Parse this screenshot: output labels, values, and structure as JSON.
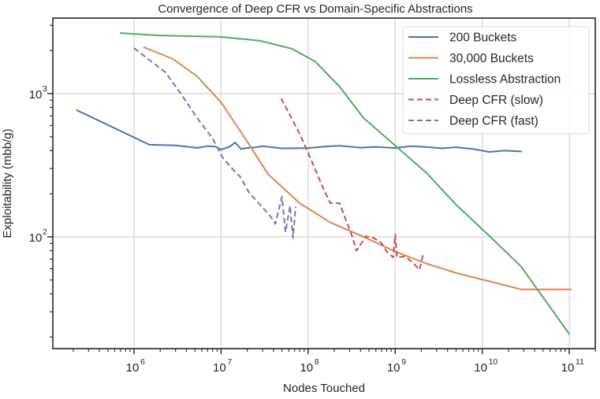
{
  "chart_data": {
    "type": "line",
    "title": "Convergence of Deep CFR vs Domain-Specific Abstractions",
    "xlabel": "Nodes Touched",
    "ylabel": "Exploitability (mbb/g)",
    "xscale": "log",
    "yscale": "log",
    "xlim": [
      135000.0,
      120000000000.0
    ],
    "ylim": [
      17,
      3300
    ],
    "grid": true,
    "legend_position": "upper right",
    "x_ticks": [
      {
        "base": "10",
        "exp": "6",
        "value": 1000000.0
      },
      {
        "base": "10",
        "exp": "7",
        "value": 10000000.0
      },
      {
        "base": "10",
        "exp": "8",
        "value": 100000000.0
      },
      {
        "base": "10",
        "exp": "9",
        "value": 1000000000.0
      },
      {
        "base": "10",
        "exp": "10",
        "value": 10000000000.0
      },
      {
        "base": "10",
        "exp": "11",
        "value": 100000000000.0
      }
    ],
    "y_ticks": [
      {
        "base": "10",
        "exp": "2",
        "value": 100
      },
      {
        "base": "10",
        "exp": "3",
        "value": 1000
      }
    ],
    "series": [
      {
        "name": "200 Buckets",
        "color": "#4c72b0",
        "dash": "solid",
        "x": [
          220000.0,
          1500000.0,
          3000000.0,
          5300000.0,
          7000000.0,
          8500000.0,
          10000000.0,
          12500000.0,
          14500000.0,
          17000000.0,
          20000000.0,
          25000000.0,
          30000000.0,
          50000000.0,
          100000000.0,
          160000000.0,
          230000000.0,
          400000000.0,
          600000000.0,
          1000000000.0,
          1500000000.0,
          2200000000.0,
          3500000000.0,
          5000000000.0,
          8000000000.0,
          12000000000.0,
          18000000000.0,
          28000000000.0
        ],
        "y": [
          767,
          440,
          435,
          418,
          430,
          428,
          407,
          425,
          456,
          410,
          418,
          422,
          430,
          415,
          417,
          428,
          433,
          420,
          425,
          417,
          430,
          425,
          415,
          423,
          410,
          392,
          400,
          395
        ]
      },
      {
        "name": "30,000 Buckets",
        "color": "#dd8452",
        "dash": "solid",
        "x": [
          1300000.0,
          2800000.0,
          5300000.0,
          10000000.0,
          20000000.0,
          35000000.0,
          80000000.0,
          180000000.0,
          420000000.0,
          1000000000.0,
          2300000000.0,
          5000000000.0,
          12000000000.0,
          28000000000.0,
          50000000000.0,
          105000000000.0
        ],
        "y": [
          2110,
          1745,
          1321,
          870,
          462,
          272,
          172,
          126,
          101,
          79,
          65,
          56,
          49,
          43,
          43,
          43
        ]
      },
      {
        "name": "Lossless Abstraction",
        "color": "#55a868",
        "dash": "solid",
        "x": [
          700000.0,
          1900000.0,
          10000000.0,
          28000000.0,
          65000000.0,
          120000000.0,
          230000000.0,
          430000000.0,
          1000000000.0,
          2300000000.0,
          5000000000.0,
          12000000000.0,
          28000000000.0,
          100000000000.0
        ],
        "y": [
          2650,
          2550,
          2490,
          2340,
          2060,
          1680,
          1120,
          680,
          434,
          279,
          168,
          102,
          62,
          21
        ]
      },
      {
        "name": "Deep CFR (slow)",
        "color": "#c44e52",
        "dash": "dashed",
        "x": [
          49000000.0,
          80000000.0,
          110000000.0,
          150000000.0,
          180000000.0,
          230000000.0,
          320000000.0,
          360000000.0,
          460000000.0,
          570000000.0,
          680000000.0,
          800000000.0,
          950000000.0,
          1000000000.0,
          1050000000.0,
          1300000000.0,
          1600000000.0,
          1900000000.0,
          2100000000.0
        ],
        "y": [
          927,
          524,
          337,
          217,
          172,
          172,
          101,
          80,
          101,
          98,
          92,
          79,
          72,
          104,
          72,
          73,
          66,
          59,
          76
        ]
      },
      {
        "name": "Deep CFR (fast)",
        "color": "#8172b3",
        "dash": "dashed",
        "x": [
          1000000.0,
          2300000.0,
          3500000.0,
          5300000.0,
          8000000.0,
          10400000.0,
          13600000.0,
          16700000.0,
          21000000.0,
          28000000.0,
          37000000.0,
          42000000.0,
          50000000.0,
          55000000.0,
          62000000.0,
          67000000.0,
          72000000.0
        ],
        "y": [
          2080,
          1406,
          987,
          676,
          486,
          359,
          297,
          262,
          203,
          168,
          139,
          123,
          191,
          108,
          165,
          98,
          163
        ]
      }
    ]
  }
}
